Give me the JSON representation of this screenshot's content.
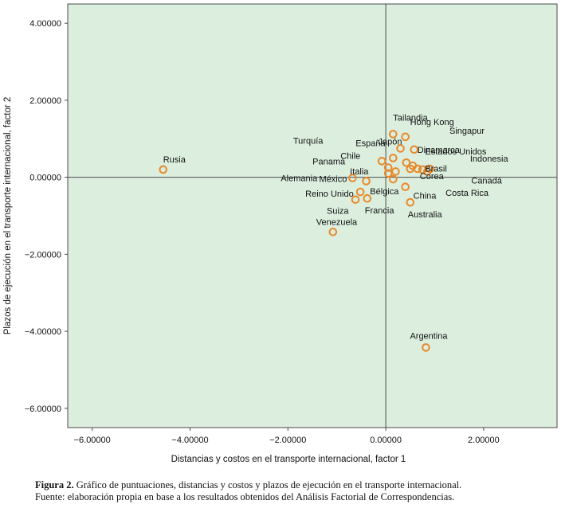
{
  "chart_data": {
    "type": "scatter",
    "xlabel": "Distancias y costos en el transporte internacional, factor 1",
    "ylabel": "Plazos de ejecución en el transporte internacional, factor 2",
    "xlim": [
      -6.5,
      3.5
    ],
    "ylim": [
      -6.5,
      4.5
    ],
    "xticks": [
      -6,
      -4,
      -2,
      0,
      2
    ],
    "yticks": [
      4,
      2,
      0,
      -2,
      -4,
      -6
    ],
    "xtick_labels": [
      "−6.00000",
      "−4.00000",
      "−2.00000",
      "0.00000",
      "2.00000"
    ],
    "ytick_labels": [
      "4.00000",
      "2.00000",
      "0.00000",
      "−2.00000",
      "−4.00000",
      "−6.00000"
    ],
    "grid": false,
    "reference_lines": [
      {
        "axis": "x",
        "value": 0
      },
      {
        "axis": "y",
        "value": 0
      }
    ],
    "colors": {
      "background": "#dcefdf",
      "marker": "#e8892a",
      "axis": "#4a4a4a"
    },
    "points": [
      {
        "label": "Rusia",
        "x": -4.55,
        "y": 0.2
      },
      {
        "label": "Tailandia",
        "x": 0.15,
        "y": 1.12
      },
      {
        "label": "Japón",
        "x": 0.3,
        "y": 0.75
      },
      {
        "label": "Hong Kong",
        "x": 0.4,
        "y": 1.05
      },
      {
        "label": "Singapur",
        "x": 0.65,
        "y": 0.22
      },
      {
        "label": "Chile",
        "x": -0.08,
        "y": 0.42
      },
      {
        "label": "España",
        "x": 0.15,
        "y": 0.5
      },
      {
        "label": "Dinamarca",
        "x": 0.58,
        "y": 0.72
      },
      {
        "label": "Turquía",
        "x": 0.42,
        "y": 0.38
      },
      {
        "label": "Panamá",
        "x": 0.05,
        "y": 0.25
      },
      {
        "label": "Estados Unidos",
        "x": 0.9,
        "y": 0.22
      },
      {
        "label": "Indonesia",
        "x": 0.55,
        "y": 0.3
      },
      {
        "label": "Italia",
        "x": 0.05,
        "y": 0.1
      },
      {
        "label": "Brasil",
        "x": 0.85,
        "y": 0.15
      },
      {
        "label": "Alemania",
        "x": -0.68,
        "y": -0.02
      },
      {
        "label": "México",
        "x": -0.4,
        "y": -0.1
      },
      {
        "label": "Bélgica",
        "x": 0.15,
        "y": -0.05
      },
      {
        "label": "Corea",
        "x": 0.5,
        "y": 0.22
      },
      {
        "label": "Canadá",
        "x": 0.2,
        "y": 0.15
      },
      {
        "label": "Reino Unido",
        "x": -0.52,
        "y": -0.38
      },
      {
        "label": "China",
        "x": 0.4,
        "y": -0.25
      },
      {
        "label": "Costa Rica",
        "x": 0.75,
        "y": 0.2
      },
      {
        "label": "Suiza",
        "x": -0.62,
        "y": -0.58
      },
      {
        "label": "Francia",
        "x": -0.38,
        "y": -0.55
      },
      {
        "label": "Australia",
        "x": 0.5,
        "y": -0.65
      },
      {
        "label": "Venezuela",
        "x": -1.08,
        "y": -1.42
      },
      {
        "label": "Argentina",
        "x": 0.82,
        "y": -4.42
      }
    ]
  },
  "caption": {
    "figure_label": "Figura 2.",
    "title": "Gráfico de puntuaciones, distancias y costos y plazos de ejecución en el transporte internacional.",
    "source": "Fuente: elaboración propia en base a los resultados obtenidos del Análisis Factorial de Correspondencias."
  }
}
